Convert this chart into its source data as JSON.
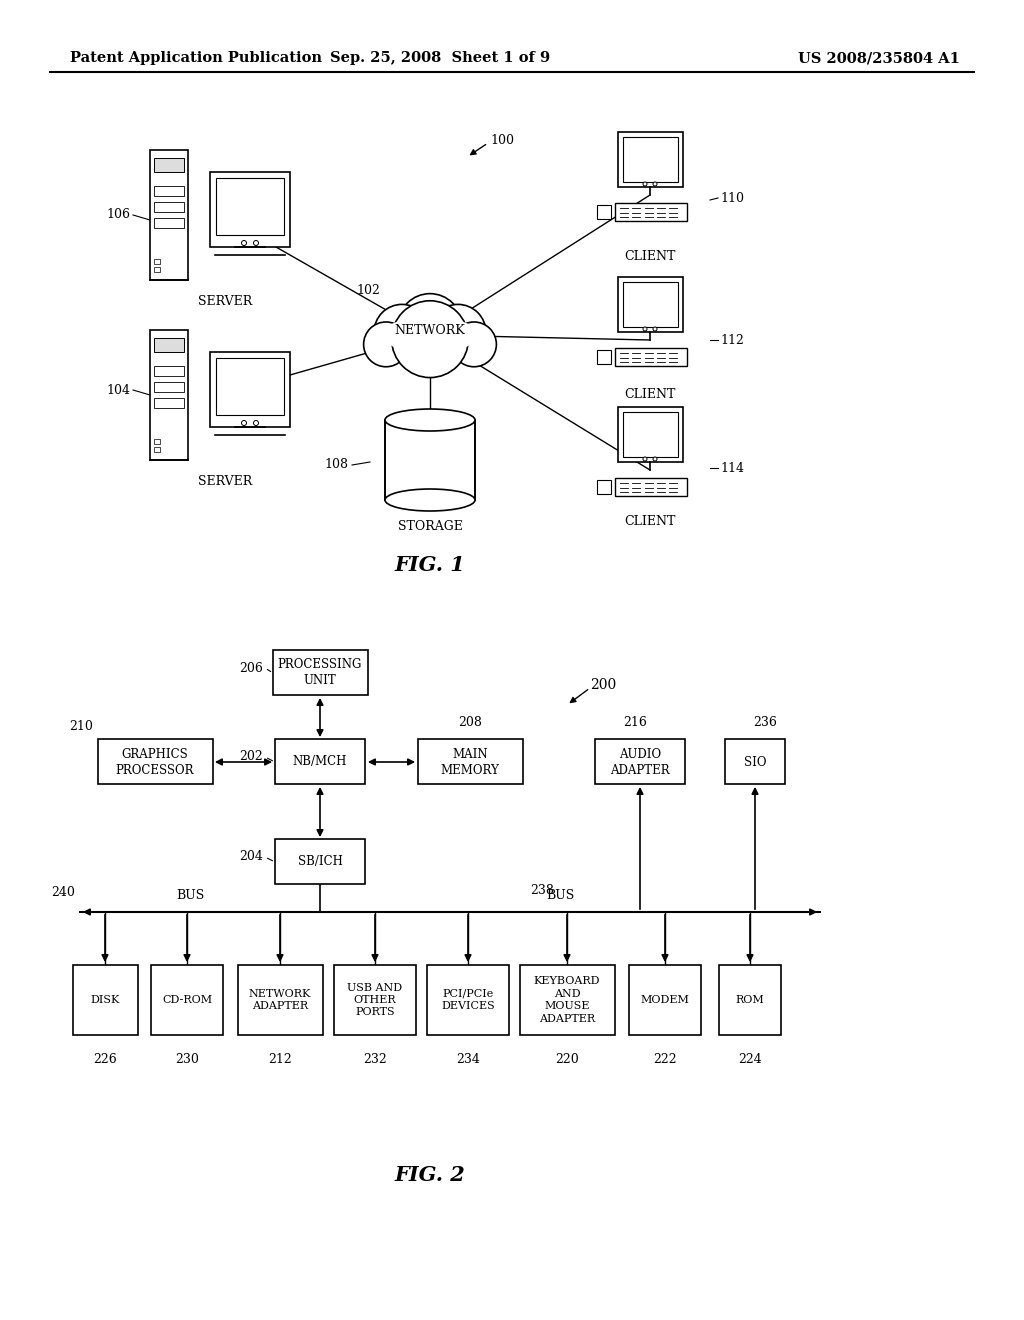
{
  "background_color": "#ffffff",
  "header_left": "Patent Application Publication",
  "header_mid": "Sep. 25, 2008  Sheet 1 of 9",
  "header_right": "US 2008/235804 A1",
  "fig1_caption": "FIG. 1",
  "fig2_caption": "FIG. 2",
  "fig1_ref100": "100",
  "fig1_ref102": "102",
  "fig1_ref104": "104",
  "fig1_ref106": "106",
  "fig1_ref108": "108",
  "fig1_ref110": "110",
  "fig1_ref112": "112",
  "fig1_ref114": "114"
}
